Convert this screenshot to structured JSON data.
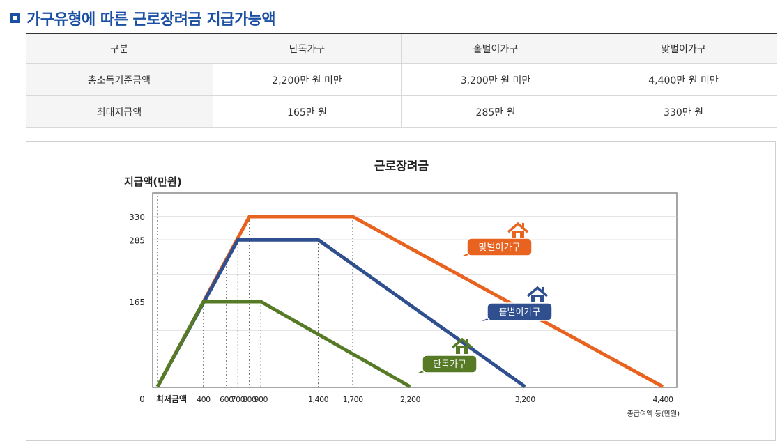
{
  "page": {
    "title": "가구유형에 따른 근로장려금 지급가능액"
  },
  "table": {
    "headers": [
      "구분",
      "단독가구",
      "홑벌이가구",
      "맞벌이가구"
    ],
    "rows": [
      [
        "총소득기준금액",
        "2,200만 원 미만",
        "3,200만 원 미만",
        "4,400만 원 미만"
      ],
      [
        "최대지급액",
        "165만 원",
        "285만 원",
        "330만 원"
      ]
    ]
  },
  "chart_data": {
    "type": "line",
    "title": "근로장려금",
    "ylabel": "지급액(만원)",
    "xlabel": "총급여액 등(만원)",
    "x_min_label": "최저금액",
    "xlim": [
      0,
      4400
    ],
    "ylim": [
      0,
      330
    ],
    "x_ticks": [
      {
        "value": 400,
        "label": "400"
      },
      {
        "value": 600,
        "label": "600"
      },
      {
        "value": 700,
        "label": "700"
      },
      {
        "value": 800,
        "label": "800"
      },
      {
        "value": 900,
        "label": "900"
      },
      {
        "value": 1400,
        "label": "1,400"
      },
      {
        "value": 1700,
        "label": "1,700"
      },
      {
        "value": 2200,
        "label": "2,200"
      },
      {
        "value": 3200,
        "label": "3,200"
      },
      {
        "value": 4400,
        "label": "4,400"
      }
    ],
    "y_ticks": [
      {
        "value": 165,
        "label": "165"
      },
      {
        "value": 285,
        "label": "285"
      },
      {
        "value": 330,
        "label": "330"
      }
    ],
    "x_zero_label": "0",
    "grid": true,
    "series": [
      {
        "name": "맞벌이가구",
        "color": "#e8631f",
        "points": [
          [
            0,
            0
          ],
          [
            800,
            330
          ],
          [
            1700,
            330
          ],
          [
            4400,
            0
          ]
        ]
      },
      {
        "name": "홑벌이가구",
        "color": "#2f4f8f",
        "points": [
          [
            0,
            0
          ],
          [
            700,
            285
          ],
          [
            1400,
            285
          ],
          [
            3200,
            0
          ]
        ]
      },
      {
        "name": "단독가구",
        "color": "#567a26",
        "points": [
          [
            0,
            0
          ],
          [
            400,
            165
          ],
          [
            900,
            165
          ],
          [
            2200,
            0
          ]
        ]
      }
    ]
  }
}
